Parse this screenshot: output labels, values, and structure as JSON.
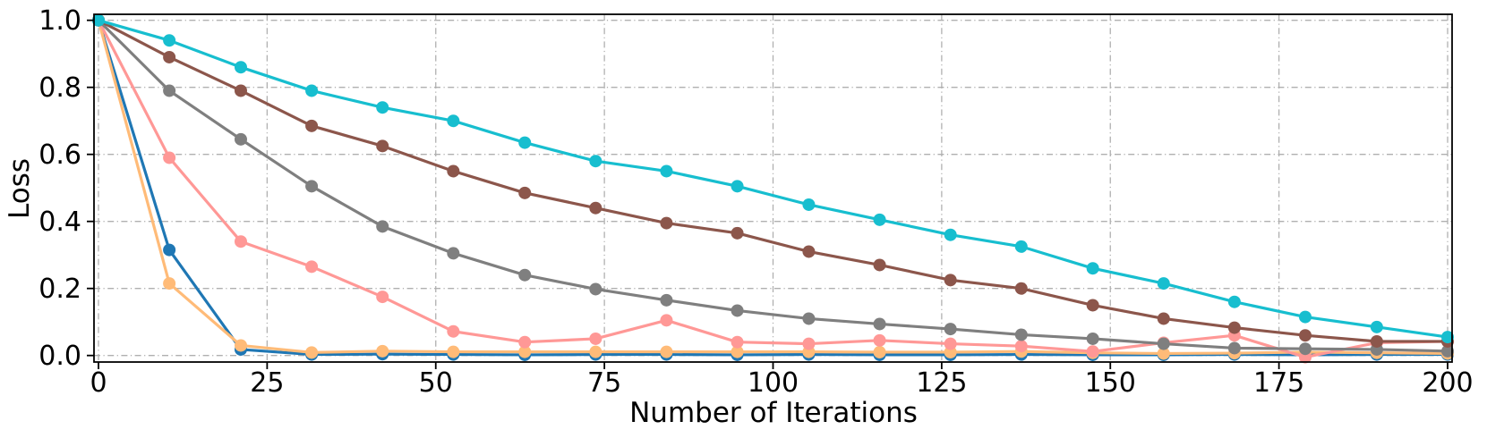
{
  "chart_data": {
    "type": "line",
    "title": "",
    "xlabel": "Number of Iterations",
    "ylabel": "Loss",
    "xlim": [
      0,
      200
    ],
    "ylim": [
      -0.02,
      1.02
    ],
    "xticks": [
      0,
      25,
      50,
      75,
      100,
      125,
      150,
      175,
      200
    ],
    "yticks": [
      0.0,
      0.2,
      0.4,
      0.6,
      0.8,
      1.0
    ],
    "grid": true,
    "grid_style": "dash-dot",
    "grid_color": "#b0b0b0",
    "legend_position": "none",
    "marker": "circle",
    "x": [
      0,
      10.5,
      21.1,
      31.6,
      42.1,
      52.6,
      63.2,
      73.7,
      84.2,
      94.7,
      105.3,
      115.8,
      126.3,
      136.8,
      147.4,
      157.9,
      168.4,
      178.9,
      189.5,
      200
    ],
    "series": [
      {
        "name": "series-blue",
        "color": "#1f77b4",
        "values": [
          1.0,
          0.315,
          0.018,
          0.003,
          0.004,
          0.003,
          0.002,
          0.003,
          0.003,
          0.002,
          0.003,
          0.002,
          0.002,
          0.003,
          0.002,
          0.002,
          0.003,
          0.002,
          0.003,
          0.003
        ]
      },
      {
        "name": "series-orange",
        "color": "#ffbb78",
        "values": [
          1.0,
          0.215,
          0.03,
          0.009,
          0.013,
          0.011,
          0.011,
          0.011,
          0.011,
          0.011,
          0.011,
          0.01,
          0.01,
          0.012,
          0.008,
          0.006,
          0.007,
          0.01,
          0.008,
          0.006
        ]
      },
      {
        "name": "series-pink",
        "color": "#ff9896",
        "values": [
          1.0,
          0.59,
          0.34,
          0.265,
          0.175,
          0.072,
          0.04,
          0.05,
          0.105,
          0.04,
          0.035,
          0.045,
          0.035,
          0.028,
          0.012,
          0.038,
          0.06,
          -0.005,
          0.038,
          0.042
        ]
      },
      {
        "name": "series-gray",
        "color": "#7f7f7f",
        "values": [
          1.0,
          0.79,
          0.645,
          0.505,
          0.385,
          0.305,
          0.24,
          0.198,
          0.165,
          0.134,
          0.11,
          0.094,
          0.079,
          0.062,
          0.05,
          0.035,
          0.022,
          0.02,
          0.018,
          0.013
        ]
      },
      {
        "name": "series-brown",
        "color": "#8c564b",
        "values": [
          1.0,
          0.89,
          0.79,
          0.685,
          0.625,
          0.55,
          0.485,
          0.44,
          0.395,
          0.365,
          0.31,
          0.27,
          0.225,
          0.2,
          0.15,
          0.11,
          0.083,
          0.06,
          0.042,
          0.042
        ]
      },
      {
        "name": "series-cyan",
        "color": "#17becf",
        "values": [
          1.0,
          0.94,
          0.86,
          0.79,
          0.74,
          0.7,
          0.635,
          0.58,
          0.55,
          0.505,
          0.45,
          0.405,
          0.36,
          0.325,
          0.26,
          0.215,
          0.16,
          0.115,
          0.085,
          0.055
        ]
      }
    ]
  },
  "style": {
    "spine_color": "#000000",
    "tick_color": "#000000",
    "line_width": 3.2,
    "marker_radius": 7
  }
}
